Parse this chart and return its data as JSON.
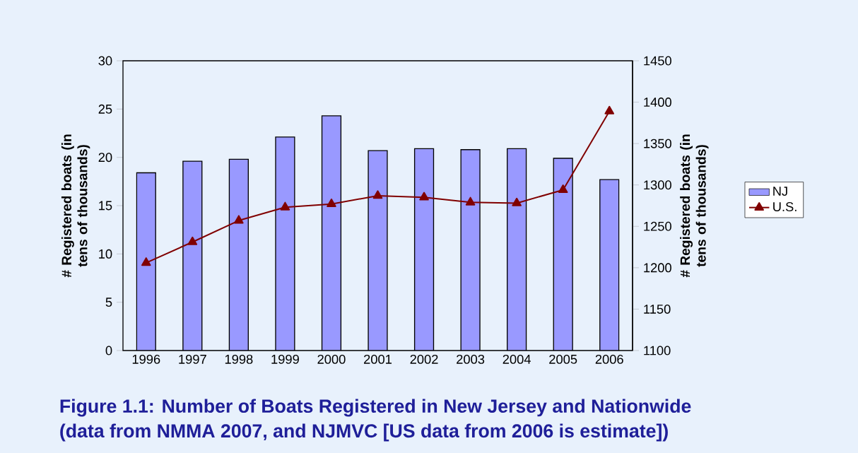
{
  "chart_data": {
    "type": "bar",
    "title": "Figure 1.1:  Number of Boats Registered in New Jersey and Nationwide",
    "subtitle": "(data from NMMA 2007, and NJMVC [US data from 2006 is estimate])",
    "ylabel": "# Registered boats (in tens of thousands)",
    "y2label": "# Registered boats (in tens of thousands)",
    "categories": [
      "1996",
      "1997",
      "1998",
      "1999",
      "2000",
      "2001",
      "2002",
      "2003",
      "2004",
      "2005",
      "2006"
    ],
    "series": [
      {
        "name": "NJ",
        "color": "#9999ff",
        "values": [
          18.4,
          19.6,
          19.8,
          22.1,
          24.3,
          20.7,
          20.9,
          20.8,
          20.9,
          19.9,
          17.7
        ]
      },
      {
        "name": "U.S.",
        "type": "line",
        "axis": "y2",
        "marker": "triangle",
        "color": "#800000",
        "values": [
          1206,
          1231,
          1257,
          1273,
          1277,
          1287,
          1285,
          1279,
          1278,
          1294,
          1389
        ]
      }
    ],
    "ylim": [
      0,
      30
    ],
    "yticks": [
      0,
      5,
      10,
      15,
      20,
      25,
      30
    ],
    "y2lim": [
      1100,
      1450
    ],
    "y2ticks": [
      1100,
      1150,
      1200,
      1250,
      1300,
      1350,
      1400,
      1450
    ],
    "legend": "right"
  }
}
